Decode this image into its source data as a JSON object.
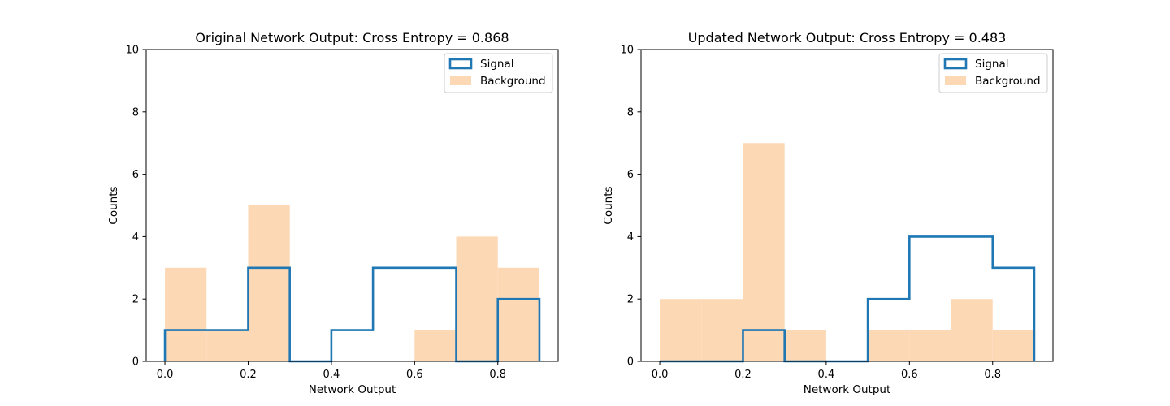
{
  "colors": {
    "signal": "#1f77b4",
    "background": "#fdd8b5"
  },
  "chart_data": [
    {
      "type": "histogram",
      "title": "Original Network Output: Cross Entropy = 0.868",
      "xlabel": "Network Output",
      "ylabel": "Counts",
      "ylim": [
        0,
        10
      ],
      "xlim": [
        -0.045,
        0.945
      ],
      "xticks": [
        "0.0",
        "0.2",
        "0.4",
        "0.6",
        "0.8"
      ],
      "yticks": [
        "0",
        "2",
        "4",
        "6",
        "8",
        "10"
      ],
      "bin_edges": [
        0.0,
        0.1,
        0.2,
        0.3,
        0.4,
        0.5,
        0.6,
        0.7,
        0.8,
        0.9
      ],
      "legend_position": "top-right",
      "series": [
        {
          "name": "Signal",
          "style": "step",
          "values": [
            1,
            1,
            3,
            0,
            1,
            3,
            3,
            0,
            2
          ]
        },
        {
          "name": "Background",
          "style": "filled",
          "values": [
            3,
            1,
            5,
            0,
            0,
            0,
            1,
            4,
            3
          ]
        }
      ]
    },
    {
      "type": "histogram",
      "title": "Updated Network Output: Cross Entropy = 0.483",
      "xlabel": "Network Output",
      "ylabel": "Counts",
      "ylim": [
        0,
        10
      ],
      "xlim": [
        -0.045,
        0.945
      ],
      "xticks": [
        "0.0",
        "0.2",
        "0.4",
        "0.6",
        "0.8"
      ],
      "yticks": [
        "0",
        "2",
        "4",
        "6",
        "8",
        "10"
      ],
      "bin_edges": [
        0.0,
        0.1,
        0.2,
        0.3,
        0.4,
        0.5,
        0.6,
        0.7,
        0.8,
        0.9
      ],
      "legend_position": "top-right",
      "series": [
        {
          "name": "Signal",
          "style": "step",
          "values": [
            0,
            0,
            1,
            0,
            0,
            2,
            4,
            4,
            3
          ]
        },
        {
          "name": "Background",
          "style": "filled",
          "values": [
            2,
            2,
            7,
            1,
            0,
            1,
            1,
            2,
            1
          ]
        }
      ]
    }
  ]
}
